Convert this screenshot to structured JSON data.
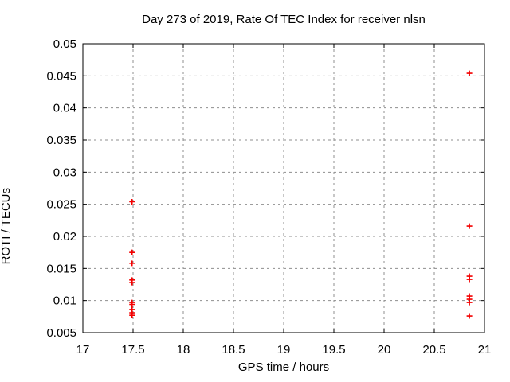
{
  "chart_data": {
    "type": "scatter",
    "title": "Day 273 of 2019, Rate Of TEC Index for receiver nlsn",
    "xlabel": "GPS time / hours",
    "ylabel": "ROTI / TECUs",
    "xlim": [
      17,
      21
    ],
    "ylim": [
      0.005,
      0.05
    ],
    "xticks": [
      17,
      17.5,
      18,
      18.5,
      19,
      19.5,
      20,
      20.5,
      21
    ],
    "xtick_labels": [
      "17",
      "17.5",
      "18",
      "18.5",
      "19",
      "19.5",
      "20",
      "20.5",
      "21"
    ],
    "yticks": [
      0.005,
      0.01,
      0.015,
      0.02,
      0.025,
      0.03,
      0.035,
      0.04,
      0.045,
      0.05
    ],
    "ytick_labels": [
      "0.005",
      "0.01",
      "0.015",
      "0.02",
      "0.025",
      "0.03",
      "0.035",
      "0.04",
      "0.045",
      "0.05"
    ],
    "grid": true,
    "grid_style": "dashed",
    "legend": "none",
    "axis_color": "#000000",
    "grid_color": "#8f8f8f",
    "marker": {
      "shape": "plus",
      "color": "#f40000",
      "size": 7
    },
    "series": [
      {
        "name": "ROTI",
        "points": [
          [
            17.49,
            0.0254
          ],
          [
            17.49,
            0.0175
          ],
          [
            17.49,
            0.0158
          ],
          [
            17.49,
            0.0132
          ],
          [
            17.49,
            0.0128
          ],
          [
            17.49,
            0.0097
          ],
          [
            17.49,
            0.0094
          ],
          [
            17.49,
            0.0086
          ],
          [
            17.49,
            0.0081
          ],
          [
            17.49,
            0.0077
          ],
          [
            20.85,
            0.0454
          ],
          [
            20.85,
            0.0216
          ],
          [
            20.85,
            0.0138
          ],
          [
            20.85,
            0.0133
          ],
          [
            20.85,
            0.0107
          ],
          [
            20.85,
            0.0102
          ],
          [
            20.85,
            0.0097
          ],
          [
            20.85,
            0.0076
          ]
        ]
      }
    ]
  }
}
